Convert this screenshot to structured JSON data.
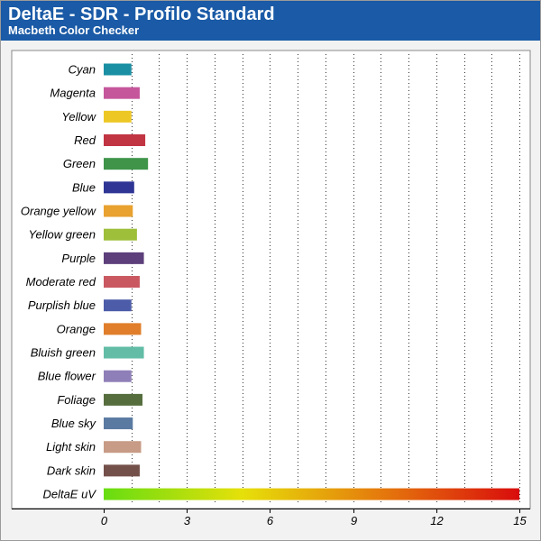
{
  "header": {
    "title": "DeltaE - SDR - Profilo Standard",
    "subtitle": "Macbeth Color Checker"
  },
  "colors": {
    "header_bg": "#1a5aa6",
    "plot_bg": "#ffffff",
    "gradient": [
      "#66dd11",
      "#e6e00a",
      "#e57a0c",
      "#d90c0c"
    ]
  },
  "chart_data": {
    "type": "bar",
    "orientation": "horizontal",
    "title": "DeltaE - SDR - Profilo Standard",
    "subtitle": "Macbeth Color Checker",
    "xlabel": "",
    "ylabel": "",
    "xlim": [
      0,
      15
    ],
    "xticks": [
      0,
      3,
      6,
      9,
      12,
      15
    ],
    "grid": "vertical-dotted",
    "categories": [
      "Cyan",
      "Magenta",
      "Yellow",
      "Red",
      "Green",
      "Blue",
      "Orange yellow",
      "Yellow green",
      "Purple",
      "Moderate red",
      "Purplish blue",
      "Orange",
      "Bluish green",
      "Blue flower",
      "Foliage",
      "Blue sky",
      "Light skin",
      "Dark skin",
      "DeltaE uV"
    ],
    "values": [
      1.0,
      1.3,
      1.0,
      1.5,
      1.6,
      1.1,
      1.05,
      1.2,
      1.45,
      1.3,
      1.0,
      1.35,
      1.45,
      1.0,
      1.4,
      1.05,
      1.35,
      1.3,
      15.0
    ],
    "bar_colors": [
      "#1a8fa3",
      "#c5569c",
      "#edc825",
      "#c13442",
      "#3f9449",
      "#2e3594",
      "#e9a22f",
      "#9dbf3a",
      "#5d3f7b",
      "#c95861",
      "#4c5ca9",
      "#e07e2b",
      "#62bca6",
      "#8f7fb8",
      "#566e3e",
      "#5a7aa1",
      "#c79b86",
      "#74504a",
      "gradient"
    ]
  }
}
